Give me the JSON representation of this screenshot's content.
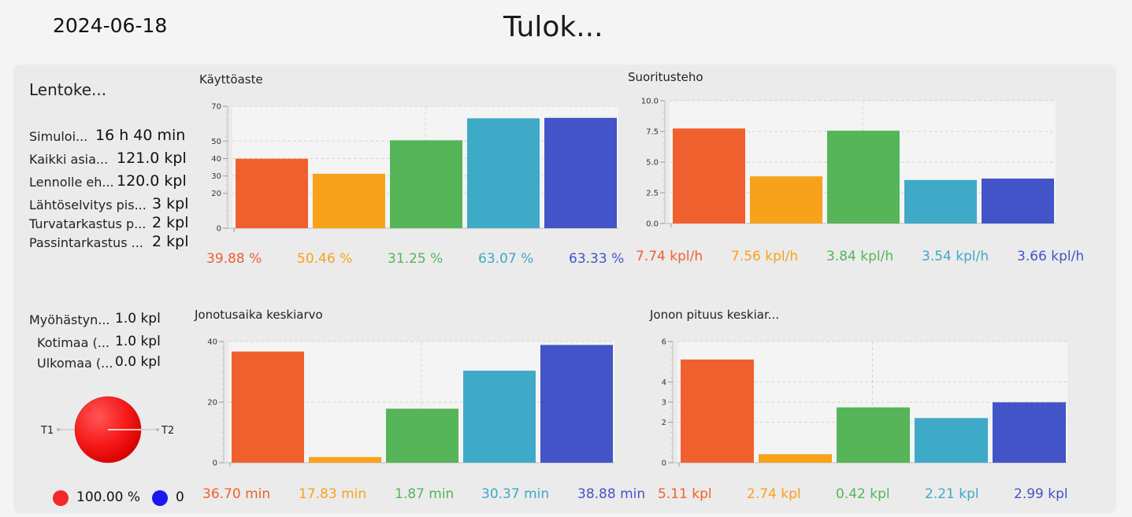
{
  "header": {
    "date": "2024-06-18",
    "title": "Tulok..."
  },
  "colors": [
    "#f0602e",
    "#f8a21c",
    "#55b558",
    "#3fa9c8",
    "#4254c7"
  ],
  "summary": {
    "heading": "Lentoke...",
    "rows": [
      {
        "label": "Simuloi...",
        "value": "16 h 40 min"
      },
      {
        "label": "Kaikki asia...",
        "value": "121.0 kpl"
      },
      {
        "label": "Lennolle eh...",
        "value": "120.0 kpl"
      },
      {
        "label": "Lähtöselvitys pis...",
        "value": "3 kpl"
      },
      {
        "label": "Turvatarkastus p...",
        "value": "2 kpl"
      },
      {
        "label": "Passintarkastus ...",
        "value": "2 kpl"
      }
    ]
  },
  "delays": {
    "rows": [
      {
        "label": "Myöhästyn...",
        "value": "1.0 kpl"
      },
      {
        "label": "Kotimaa (...",
        "value": "1.0 kpl"
      },
      {
        "label": "Ulkomaa (...",
        "value": "0.0 kpl"
      }
    ]
  },
  "pie": {
    "left_label": "T1",
    "right_label": "T2",
    "legend": [
      {
        "color": "#f4282a",
        "text": "100.00 %"
      },
      {
        "color": "#1a18f0",
        "text": "0"
      }
    ]
  },
  "charts": [
    {
      "id": "kayttoaste",
      "title": "Käyttöaste",
      "labels": [
        "39.88 %",
        "50.46 %",
        "31.25 %",
        "63.07 %",
        "63.33 %"
      ]
    },
    {
      "id": "suoritusteho",
      "title": "Suoritusteho",
      "labels": [
        "7.74 kpl/h",
        "7.56 kpl/h",
        "3.84 kpl/h",
        "3.54 kpl/h",
        "3.66 kpl/h"
      ]
    },
    {
      "id": "jonotusaika",
      "title": "Jonotusaika keskiarvo",
      "labels": [
        "36.70 min",
        "17.83 min",
        "1.87 min",
        "30.37 min",
        "38.88 min"
      ]
    },
    {
      "id": "jononpituus",
      "title": "Jonon pituus keskiar...",
      "labels": [
        "5.11 kpl",
        "2.74 kpl",
        "0.42 kpl",
        "2.21 kpl",
        "2.99 kpl"
      ]
    }
  ],
  "chart_data": [
    {
      "type": "bar",
      "title": "Käyttöaste",
      "ylim": [
        0,
        70
      ],
      "yticks": [
        0,
        20,
        30,
        40,
        50,
        70
      ],
      "grid": true,
      "values": [
        39.88,
        31.25,
        50.46,
        63.07,
        63.33
      ]
    },
    {
      "type": "bar",
      "title": "Suoritusteho",
      "ylim": [
        0,
        10
      ],
      "yticks": [
        0.0,
        2.5,
        5.0,
        7.5,
        10.0
      ],
      "grid": true,
      "values": [
        7.74,
        3.84,
        7.56,
        3.54,
        3.66
      ]
    },
    {
      "type": "bar",
      "title": "Jonotusaika keskiarvo",
      "ylim": [
        0,
        40
      ],
      "yticks": [
        0,
        20,
        40
      ],
      "grid": true,
      "values": [
        36.7,
        1.87,
        17.83,
        30.37,
        38.88
      ]
    },
    {
      "type": "bar",
      "title": "Jonon pituus keskiar...",
      "ylim": [
        0,
        6
      ],
      "yticks": [
        0,
        2,
        3,
        4,
        6
      ],
      "grid": true,
      "values": [
        5.11,
        0.42,
        2.74,
        2.21,
        2.99
      ]
    }
  ]
}
